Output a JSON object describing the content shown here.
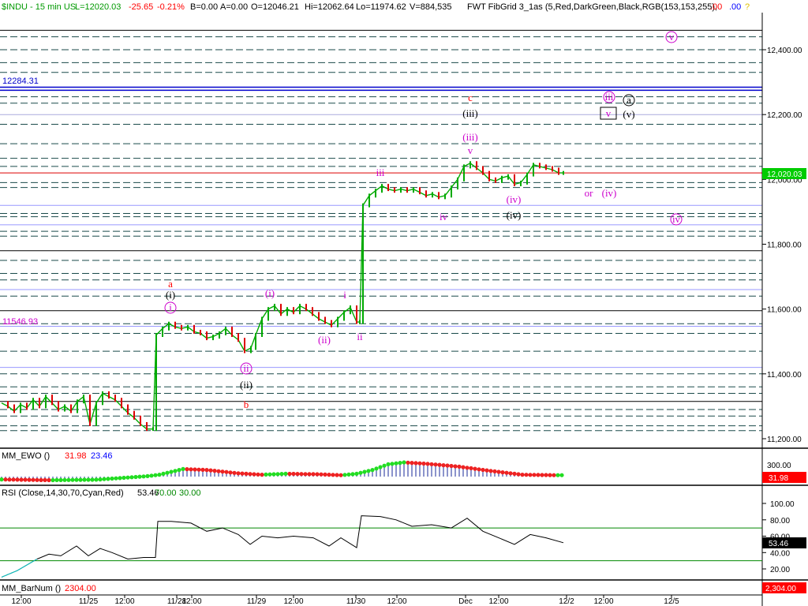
{
  "header": {
    "symbol": "$INDU - 15 min  US",
    "last": "L=12020.03",
    "change": "-25.65",
    "change_pct": "-0.21%",
    "b": "B=0.00",
    "a": "A=0.00",
    "open": "O=12046.21",
    "high": "Hi=12062.64",
    "low": "Lo=11974.62",
    "volume": "V=884,535",
    "study": "FWT FibGrid 3_1as (5,Red,DarkGreen,Black,RGB(153,153,255),",
    "v1": ".00",
    "v2": ".00",
    "v3": "?"
  },
  "price_axis": {
    "ticks": [
      "12,400.00",
      "12,200.00",
      "12,000.00",
      "11,800.00",
      "11,600.00",
      "11,400.00",
      "11,200.00"
    ],
    "tick_values": [
      12400,
      12200,
      12000,
      11800,
      11600,
      11400,
      11200
    ],
    "last_label": "12,020.03",
    "last_value": 12020.03
  },
  "levels": {
    "upper_label": "12284.31",
    "upper_value": 12284.31,
    "lower_label": "11546.93",
    "lower_value": 11546.93
  },
  "ewo": {
    "title": "MM_EWO ()",
    "v1": "31.98",
    "v2": "23.46",
    "tick": "300.00",
    "last_label": "31.98"
  },
  "rsi": {
    "title": "RSI (Close,14,30,70,Cyan,Red)",
    "v1": "53.46",
    "v2": "70.00",
    "v3": "30.00",
    "ticks": [
      "100.00",
      "80.00",
      "60.00",
      "40.00",
      "20.00"
    ],
    "tick_values": [
      100,
      80,
      60,
      40,
      20
    ],
    "last_label": "53.46",
    "upper": 70,
    "lower": 30
  },
  "barnum": {
    "title": "MM_BarNum ()",
    "value": "2304.00",
    "last_label": "2,304.00"
  },
  "time_axis": {
    "labels": [
      "12:00",
      "11/25",
      "12:00",
      "11/28",
      "12:00",
      "11/29",
      "12:00",
      "11/30",
      "12:00",
      "Dec",
      "12:00",
      "12/2",
      "12:00",
      "12/5"
    ]
  },
  "wave_labels": [
    {
      "text": "a",
      "color": "#ff0000"
    },
    {
      "text": "(i)",
      "color": "#000000"
    },
    {
      "text": "i",
      "color": "#cc00cc"
    },
    {
      "text": "(i)",
      "color": "#cc00cc"
    },
    {
      "text": "(ii)",
      "color": "#cc00cc"
    },
    {
      "text": "i",
      "color": "#cc00cc"
    },
    {
      "text": "ii",
      "color": "#cc00cc"
    },
    {
      "text": "ii",
      "color": "#cc00cc"
    },
    {
      "text": "(ii)",
      "color": "#000000"
    },
    {
      "text": "b",
      "color": "#ff0000"
    },
    {
      "text": "iii",
      "color": "#cc00cc"
    },
    {
      "text": "iv",
      "color": "#cc00cc"
    },
    {
      "text": "c",
      "color": "#ff0000"
    },
    {
      "text": "(iii)",
      "color": "#000000"
    },
    {
      "text": "(iii)",
      "color": "#cc00cc"
    },
    {
      "text": "v",
      "color": "#cc00cc"
    },
    {
      "text": "(iv)",
      "color": "#cc00cc"
    },
    {
      "text": "(iv)",
      "color": "#000000"
    },
    {
      "text": "or",
      "color": "#cc00cc"
    },
    {
      "text": "(iv)",
      "color": "#cc00cc"
    },
    {
      "text": "iii",
      "color": "#cc00cc"
    },
    {
      "text": "a",
      "color": "#000000"
    },
    {
      "text": "v",
      "color": "#cc00cc"
    },
    {
      "text": "(v)",
      "color": "#000000"
    },
    {
      "text": "v",
      "color": "#cc00cc"
    },
    {
      "text": "iv",
      "color": "#cc00cc"
    }
  ],
  "chart_data": {
    "type": "line",
    "title": "",
    "ylim": [
      11160,
      12500
    ],
    "grid": false,
    "levels_solid": [
      {
        "value": 12460,
        "color": "#000000"
      },
      {
        "value": 12284.31,
        "color": "#0000cc"
      },
      {
        "value": 12275,
        "color": "#0000cc"
      },
      {
        "value": 12200,
        "color": "#aaaadd"
      },
      {
        "value": 12020.03,
        "color": "#dd0000"
      },
      {
        "value": 11920,
        "color": "#9999ff"
      },
      {
        "value": 11860,
        "color": "#9999ff"
      },
      {
        "value": 11780,
        "color": "#000000"
      },
      {
        "value": 11660,
        "color": "#9999ff"
      },
      {
        "value": 11595,
        "color": "#000000"
      },
      {
        "value": 11546.93,
        "color": "#9999ff"
      },
      {
        "value": 11420,
        "color": "#9999ff"
      },
      {
        "value": 11315,
        "color": "#000000"
      }
    ],
    "levels_dashed": [
      12440,
      12400,
      12360,
      12330,
      12255,
      12235,
      12170,
      12110,
      12065,
      12040,
      11990,
      11975,
      11895,
      11885,
      11840,
      11825,
      11750,
      11710,
      11690,
      11640,
      11555,
      11525,
      11470,
      11400,
      11360,
      11340,
      11290,
      11270,
      11240,
      11225
    ],
    "price": [
      {
        "t": 0,
        "v": 11310
      },
      {
        "t": 8,
        "v": 11300
      },
      {
        "t": 16,
        "v": 11285
      },
      {
        "t": 24,
        "v": 11305
      },
      {
        "t": 32,
        "v": 11295
      },
      {
        "t": 40,
        "v": 11320
      },
      {
        "t": 48,
        "v": 11300
      },
      {
        "t": 56,
        "v": 11330
      },
      {
        "t": 64,
        "v": 11310
      },
      {
        "t": 72,
        "v": 11290
      },
      {
        "t": 80,
        "v": 11300
      },
      {
        "t": 88,
        "v": 11285
      },
      {
        "t": 96,
        "v": 11315
      },
      {
        "t": 104,
        "v": 11330
      },
      {
        "t": 112,
        "v": 11245
      },
      {
        "t": 120,
        "v": 11310
      },
      {
        "t": 128,
        "v": 11340
      },
      {
        "t": 136,
        "v": 11330
      },
      {
        "t": 144,
        "v": 11320
      },
      {
        "t": 152,
        "v": 11300
      },
      {
        "t": 160,
        "v": 11280
      },
      {
        "t": 168,
        "v": 11265
      },
      {
        "t": 176,
        "v": 11245
      },
      {
        "t": 184,
        "v": 11230
      },
      {
        "t": 192,
        "v": 11230
      },
      {
        "t": 196,
        "v": 11520
      },
      {
        "t": 204,
        "v": 11540
      },
      {
        "t": 212,
        "v": 11555
      },
      {
        "t": 220,
        "v": 11545
      },
      {
        "t": 228,
        "v": 11540
      },
      {
        "t": 236,
        "v": 11545
      },
      {
        "t": 244,
        "v": 11530
      },
      {
        "t": 252,
        "v": 11525
      },
      {
        "t": 260,
        "v": 11510
      },
      {
        "t": 268,
        "v": 11515
      },
      {
        "t": 276,
        "v": 11525
      },
      {
        "t": 284,
        "v": 11540
      },
      {
        "t": 292,
        "v": 11520
      },
      {
        "t": 300,
        "v": 11505
      },
      {
        "t": 308,
        "v": 11470
      },
      {
        "t": 316,
        "v": 11480
      },
      {
        "t": 322,
        "v": 11520
      },
      {
        "t": 330,
        "v": 11570
      },
      {
        "t": 338,
        "v": 11600
      },
      {
        "t": 346,
        "v": 11610
      },
      {
        "t": 354,
        "v": 11585
      },
      {
        "t": 362,
        "v": 11600
      },
      {
        "t": 370,
        "v": 11590
      },
      {
        "t": 378,
        "v": 11610
      },
      {
        "t": 386,
        "v": 11600
      },
      {
        "t": 394,
        "v": 11585
      },
      {
        "t": 402,
        "v": 11570
      },
      {
        "t": 410,
        "v": 11560
      },
      {
        "t": 418,
        "v": 11550
      },
      {
        "t": 426,
        "v": 11570
      },
      {
        "t": 434,
        "v": 11590
      },
      {
        "t": 442,
        "v": 11605
      },
      {
        "t": 450,
        "v": 11560
      },
      {
        "t": 454,
        "v": 11560
      },
      {
        "t": 458,
        "v": 11920
      },
      {
        "t": 466,
        "v": 11950
      },
      {
        "t": 474,
        "v": 11965
      },
      {
        "t": 482,
        "v": 11980
      },
      {
        "t": 490,
        "v": 11970
      },
      {
        "t": 498,
        "v": 11965
      },
      {
        "t": 506,
        "v": 11970
      },
      {
        "t": 514,
        "v": 11965
      },
      {
        "t": 522,
        "v": 11970
      },
      {
        "t": 530,
        "v": 11960
      },
      {
        "t": 538,
        "v": 11950
      },
      {
        "t": 546,
        "v": 11955
      },
      {
        "t": 554,
        "v": 11945
      },
      {
        "t": 562,
        "v": 11950
      },
      {
        "t": 570,
        "v": 11975
      },
      {
        "t": 578,
        "v": 12000
      },
      {
        "t": 586,
        "v": 12040
      },
      {
        "t": 594,
        "v": 12050
      },
      {
        "t": 602,
        "v": 12035
      },
      {
        "t": 610,
        "v": 12020
      },
      {
        "t": 618,
        "v": 12000
      },
      {
        "t": 626,
        "v": 11995
      },
      {
        "t": 634,
        "v": 12005
      },
      {
        "t": 642,
        "v": 12010
      },
      {
        "t": 650,
        "v": 11985
      },
      {
        "t": 658,
        "v": 11990
      },
      {
        "t": 666,
        "v": 12015
      },
      {
        "t": 674,
        "v": 12045
      },
      {
        "t": 682,
        "v": 12040
      },
      {
        "t": 690,
        "v": 12035
      },
      {
        "t": 698,
        "v": 12030
      },
      {
        "t": 706,
        "v": 12020
      },
      {
        "t": 712,
        "v": 12020
      }
    ],
    "ewo": [
      {
        "t": 0,
        "v": -60
      },
      {
        "t": 60,
        "v": -75
      },
      {
        "t": 120,
        "v": -65
      },
      {
        "t": 160,
        "v": -20
      },
      {
        "t": 185,
        "v": 10
      },
      {
        "t": 200,
        "v": 40
      },
      {
        "t": 230,
        "v": 160
      },
      {
        "t": 260,
        "v": 140
      },
      {
        "t": 300,
        "v": 70
      },
      {
        "t": 330,
        "v": 40
      },
      {
        "t": 360,
        "v": 60
      },
      {
        "t": 400,
        "v": 50
      },
      {
        "t": 430,
        "v": 30
      },
      {
        "t": 450,
        "v": 60
      },
      {
        "t": 470,
        "v": 140
      },
      {
        "t": 490,
        "v": 260
      },
      {
        "t": 510,
        "v": 300
      },
      {
        "t": 540,
        "v": 270
      },
      {
        "t": 580,
        "v": 210
      },
      {
        "t": 620,
        "v": 120
      },
      {
        "t": 660,
        "v": 40
      },
      {
        "t": 700,
        "v": 30
      },
      {
        "t": 712,
        "v": 30
      }
    ],
    "rsi": [
      {
        "t": 0,
        "v": 10
      },
      {
        "t": 20,
        "v": 18
      },
      {
        "t": 45,
        "v": 32
      },
      {
        "t": 60,
        "v": 38
      },
      {
        "t": 75,
        "v": 36
      },
      {
        "t": 95,
        "v": 48
      },
      {
        "t": 110,
        "v": 36
      },
      {
        "t": 125,
        "v": 45
      },
      {
        "t": 140,
        "v": 40
      },
      {
        "t": 160,
        "v": 32
      },
      {
        "t": 180,
        "v": 34
      },
      {
        "t": 195,
        "v": 34
      },
      {
        "t": 198,
        "v": 78
      },
      {
        "t": 215,
        "v": 78
      },
      {
        "t": 240,
        "v": 76
      },
      {
        "t": 260,
        "v": 66
      },
      {
        "t": 280,
        "v": 70
      },
      {
        "t": 300,
        "v": 62
      },
      {
        "t": 315,
        "v": 50
      },
      {
        "t": 330,
        "v": 60
      },
      {
        "t": 350,
        "v": 58
      },
      {
        "t": 370,
        "v": 60
      },
      {
        "t": 395,
        "v": 58
      },
      {
        "t": 415,
        "v": 48
      },
      {
        "t": 430,
        "v": 58
      },
      {
        "t": 450,
        "v": 46
      },
      {
        "t": 456,
        "v": 85
      },
      {
        "t": 480,
        "v": 84
      },
      {
        "t": 500,
        "v": 80
      },
      {
        "t": 520,
        "v": 72
      },
      {
        "t": 545,
        "v": 74
      },
      {
        "t": 570,
        "v": 70
      },
      {
        "t": 590,
        "v": 82
      },
      {
        "t": 610,
        "v": 66
      },
      {
        "t": 630,
        "v": 58
      },
      {
        "t": 650,
        "v": 50
      },
      {
        "t": 670,
        "v": 62
      },
      {
        "t": 690,
        "v": 58
      },
      {
        "t": 712,
        "v": 52
      }
    ]
  }
}
